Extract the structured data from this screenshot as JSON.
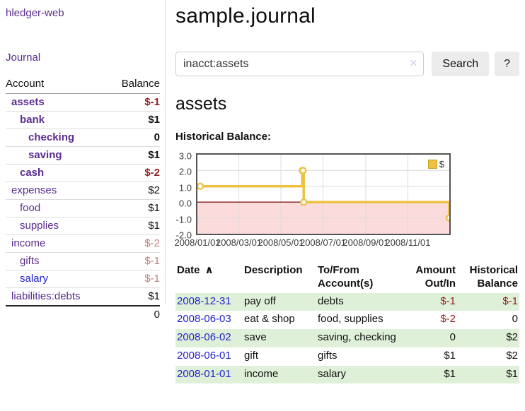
{
  "app": {
    "brand": "hledger-web"
  },
  "sidebar": {
    "nav_journal": "Journal",
    "accounts": {
      "header_account": "Account",
      "header_balance": "Balance",
      "rows": [
        {
          "name": "assets",
          "balance": "$-1",
          "level": 1,
          "bold": true,
          "amount_style": "neg-strong",
          "link_style": "purple"
        },
        {
          "name": "bank",
          "balance": "$1",
          "level": 2,
          "bold": true,
          "amount_style": "plain",
          "link_style": "purple"
        },
        {
          "name": "checking",
          "balance": "0",
          "level": 3,
          "bold": true,
          "amount_style": "plain",
          "link_style": "purple"
        },
        {
          "name": "saving",
          "balance": "$1",
          "level": 3,
          "bold": true,
          "amount_style": "plain",
          "link_style": "purple"
        },
        {
          "name": "cash",
          "balance": "$-2",
          "level": 2,
          "bold": true,
          "amount_style": "neg-strong",
          "link_style": "purple"
        },
        {
          "name": "expenses",
          "balance": "$2",
          "level": 1,
          "bold": false,
          "amount_style": "plain",
          "link_style": "purple"
        },
        {
          "name": "food",
          "balance": "$1",
          "level": 2,
          "bold": false,
          "amount_style": "plain",
          "link_style": "purple"
        },
        {
          "name": "supplies",
          "balance": "$1",
          "level": 2,
          "bold": false,
          "amount_style": "plain",
          "link_style": "purple"
        },
        {
          "name": "income",
          "balance": "$-2",
          "level": 1,
          "bold": false,
          "amount_style": "neg-muted",
          "link_style": "purple"
        },
        {
          "name": "gifts",
          "balance": "$-1",
          "level": 2,
          "bold": false,
          "amount_style": "neg-muted",
          "link_style": "purple"
        },
        {
          "name": "salary",
          "balance": "$-1",
          "level": 2,
          "bold": false,
          "amount_style": "neg-muted",
          "link_style": "blue"
        },
        {
          "name": "liabilities:debts",
          "balance": "$1",
          "level": 1,
          "bold": false,
          "amount_style": "plain",
          "link_style": "purple"
        }
      ],
      "total": "0"
    }
  },
  "main": {
    "title": "sample.journal",
    "search": {
      "value": "inacct:assets",
      "clear_icon": "✕",
      "button": "Search",
      "help": "?"
    },
    "heading": "assets",
    "chart_title": "Historical Balance:"
  },
  "chart_data": {
    "type": "line",
    "step": true,
    "title": "Historical Balance",
    "series": [
      {
        "name": "$",
        "color": "#edc240",
        "points": [
          [
            "2008/01/01",
            1
          ],
          [
            "2008/06/01",
            2
          ],
          [
            "2008/06/02",
            2
          ],
          [
            "2008/06/03",
            0
          ],
          [
            "2008/12/31",
            -1
          ]
        ]
      }
    ],
    "xlim": [
      "2008/01/01",
      "2008/12/31"
    ],
    "ylim": [
      -2,
      3
    ],
    "x_ticks": [
      "2008/01/01",
      "2008/03/01",
      "2008/05/01",
      "2008/07/01",
      "2008/09/01",
      "2008/11/01"
    ],
    "y_ticks": [
      3.0,
      2.0,
      1.0,
      0.0,
      -1.0,
      -2.0
    ],
    "grid": true,
    "legend": {
      "label": "$",
      "position": "top-right"
    },
    "negative_region_fill": "#fbdbdb",
    "zero_line_color": "#8b1a1a",
    "grid_color": "#dcdcdc",
    "marker": {
      "fill": "#ffffff",
      "stroke": "#e9c54a"
    }
  },
  "register": {
    "headers": {
      "date": "Date",
      "sort_arrow": "∧",
      "description": "Description",
      "accounts": "To/From Account(s)",
      "amount": "Amount Out/In",
      "balance": "Historical Balance"
    },
    "rows": [
      {
        "date": "2008-12-31",
        "description": "pay off",
        "accounts": "debts",
        "amount": "$-1",
        "amount_neg": true,
        "balance": "$-1",
        "balance_neg": true,
        "shaded": true
      },
      {
        "date": "2008-06-03",
        "description": "eat & shop",
        "accounts": "food, supplies",
        "amount": "$-2",
        "amount_neg": true,
        "balance": "0",
        "balance_neg": false,
        "shaded": false
      },
      {
        "date": "2008-06-02",
        "description": "save",
        "accounts": "saving, checking",
        "amount": "0",
        "amount_neg": false,
        "balance": "$2",
        "balance_neg": false,
        "shaded": true
      },
      {
        "date": "2008-06-01",
        "description": "gift",
        "accounts": "gifts",
        "amount": "$1",
        "amount_neg": false,
        "balance": "$2",
        "balance_neg": false,
        "shaded": false
      },
      {
        "date": "2008-01-01",
        "description": "income",
        "accounts": "salary",
        "amount": "$1",
        "amount_neg": false,
        "balance": "$1",
        "balance_neg": false,
        "shaded": true
      }
    ]
  },
  "colors": {
    "accent_purple": "#5b2d90",
    "link_blue": "#2323cc",
    "negative_strong": "#932024",
    "negative_muted": "#bf7e7e",
    "row_green": "#dff0d8",
    "series_gold": "#edc240",
    "negative_area_pink": "#fbdbdb",
    "zero_line_red": "#8b1a1a"
  }
}
